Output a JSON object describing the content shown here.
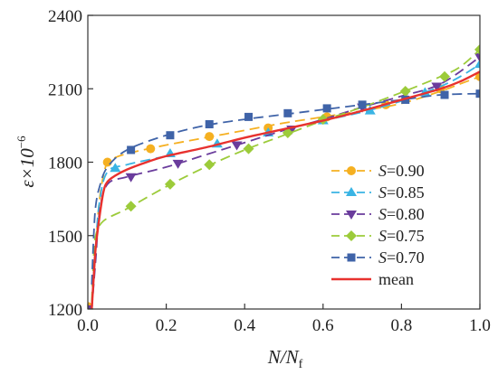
{
  "chart_data": {
    "type": "line",
    "title": "",
    "xlabel": "N/N_f",
    "xlabel_main": "N/N",
    "xlabel_sub": "f",
    "ylabel": "ε×10⁻⁶",
    "ylabel_main": "ε×10",
    "ylabel_exp": "−6",
    "xlim": [
      0.0,
      1.0
    ],
    "ylim": [
      1200,
      2400
    ],
    "xticks": [
      "0.0",
      "0.2",
      "0.4",
      "0.6",
      "0.8",
      "1.0"
    ],
    "yticks": [
      "1200",
      "1500",
      "1800",
      "2100",
      "2400"
    ],
    "grid": false,
    "legend_position": "bottom-right",
    "series": [
      {
        "name": "S=0.90",
        "symbol": "S",
        "value_label": "=0.90",
        "color": "#F5B021",
        "marker": "circle",
        "dash": true,
        "curve": [
          [
            0.01,
            1210
          ],
          [
            0.02,
            1450
          ],
          [
            0.03,
            1650
          ],
          [
            0.045,
            1780
          ],
          [
            0.06,
            1810
          ],
          [
            0.1,
            1835
          ],
          [
            0.2,
            1870
          ],
          [
            0.3,
            1900
          ],
          [
            0.4,
            1930
          ],
          [
            0.5,
            1960
          ],
          [
            0.6,
            1985
          ],
          [
            0.7,
            2010
          ],
          [
            0.8,
            2040
          ],
          [
            0.9,
            2090
          ],
          [
            0.95,
            2120
          ],
          [
            1.0,
            2150
          ]
        ],
        "markers": [
          [
            0.0,
            1210
          ],
          [
            0.05,
            1800
          ],
          [
            0.16,
            1855
          ],
          [
            0.31,
            1905
          ],
          [
            0.46,
            1940
          ],
          [
            0.61,
            1985
          ],
          [
            0.76,
            2035
          ],
          [
            0.9,
            2100
          ],
          [
            1.0,
            2150
          ]
        ]
      },
      {
        "name": "S=0.85",
        "symbol": "S",
        "value_label": "=0.85",
        "color": "#3AB4E4",
        "marker": "triangle",
        "dash": true,
        "curve": [
          [
            0.01,
            1220
          ],
          [
            0.02,
            1460
          ],
          [
            0.03,
            1640
          ],
          [
            0.05,
            1760
          ],
          [
            0.1,
            1790
          ],
          [
            0.2,
            1825
          ],
          [
            0.3,
            1860
          ],
          [
            0.4,
            1900
          ],
          [
            0.5,
            1935
          ],
          [
            0.6,
            1970
          ],
          [
            0.7,
            2005
          ],
          [
            0.8,
            2050
          ],
          [
            0.9,
            2110
          ],
          [
            0.95,
            2150
          ],
          [
            1.0,
            2200
          ]
        ],
        "markers": [
          [
            0.07,
            1775
          ],
          [
            0.21,
            1835
          ],
          [
            0.33,
            1875
          ],
          [
            0.46,
            1920
          ],
          [
            0.6,
            1970
          ],
          [
            0.72,
            2010
          ],
          [
            0.86,
            2085
          ],
          [
            1.0,
            2200
          ]
        ]
      },
      {
        "name": "S=0.80",
        "symbol": "S",
        "value_label": "=0.80",
        "color": "#6A3C9C",
        "marker": "triangle-down",
        "dash": true,
        "curve": [
          [
            0.01,
            1200
          ],
          [
            0.02,
            1400
          ],
          [
            0.03,
            1600
          ],
          [
            0.05,
            1710
          ],
          [
            0.1,
            1740
          ],
          [
            0.2,
            1780
          ],
          [
            0.3,
            1830
          ],
          [
            0.4,
            1880
          ],
          [
            0.5,
            1930
          ],
          [
            0.6,
            1975
          ],
          [
            0.7,
            2025
          ],
          [
            0.8,
            2070
          ],
          [
            0.9,
            2120
          ],
          [
            1.0,
            2230
          ]
        ],
        "markers": [
          [
            0.0,
            1200
          ],
          [
            0.11,
            1740
          ],
          [
            0.23,
            1795
          ],
          [
            0.38,
            1870
          ],
          [
            0.52,
            1935
          ],
          [
            0.7,
            2025
          ],
          [
            0.89,
            2110
          ],
          [
            1.0,
            2230
          ]
        ]
      },
      {
        "name": "S=0.75",
        "symbol": "S",
        "value_label": "=0.75",
        "color": "#9CCB3A",
        "marker": "diamond",
        "dash": true,
        "curve": [
          [
            0.01,
            1230
          ],
          [
            0.015,
            1420
          ],
          [
            0.02,
            1500
          ],
          [
            0.04,
            1560
          ],
          [
            0.1,
            1610
          ],
          [
            0.2,
            1700
          ],
          [
            0.3,
            1780
          ],
          [
            0.4,
            1850
          ],
          [
            0.5,
            1910
          ],
          [
            0.6,
            1970
          ],
          [
            0.7,
            2025
          ],
          [
            0.8,
            2085
          ],
          [
            0.9,
            2150
          ],
          [
            0.95,
            2190
          ],
          [
            1.0,
            2260
          ]
        ],
        "markers": [
          [
            0.11,
            1620
          ],
          [
            0.21,
            1710
          ],
          [
            0.31,
            1790
          ],
          [
            0.41,
            1855
          ],
          [
            0.51,
            1920
          ],
          [
            0.6,
            1975
          ],
          [
            0.81,
            2090
          ],
          [
            0.91,
            2150
          ],
          [
            1.0,
            2260
          ]
        ]
      },
      {
        "name": "S=0.70",
        "symbol": "S",
        "value_label": "=0.70",
        "color": "#3F63A8",
        "marker": "square",
        "dash": true,
        "curve": [
          [
            0.01,
            1300
          ],
          [
            0.015,
            1500
          ],
          [
            0.02,
            1620
          ],
          [
            0.03,
            1700
          ],
          [
            0.05,
            1780
          ],
          [
            0.1,
            1850
          ],
          [
            0.2,
            1910
          ],
          [
            0.3,
            1950
          ],
          [
            0.4,
            1975
          ],
          [
            0.5,
            1995
          ],
          [
            0.6,
            2015
          ],
          [
            0.7,
            2035
          ],
          [
            0.8,
            2055
          ],
          [
            0.9,
            2075
          ],
          [
            1.0,
            2080
          ]
        ],
        "markers": [
          [
            0.11,
            1850
          ],
          [
            0.21,
            1910
          ],
          [
            0.31,
            1955
          ],
          [
            0.41,
            1985
          ],
          [
            0.51,
            2000
          ],
          [
            0.61,
            2020
          ],
          [
            0.7,
            2035
          ],
          [
            0.81,
            2055
          ],
          [
            0.91,
            2075
          ],
          [
            1.0,
            2080
          ]
        ]
      },
      {
        "name": "mean",
        "symbol": "",
        "value_label": "mean",
        "color": "#E8312E",
        "marker": "none",
        "dash": false,
        "curve": [
          [
            0.01,
            1200
          ],
          [
            0.015,
            1330
          ],
          [
            0.02,
            1450
          ],
          [
            0.03,
            1580
          ],
          [
            0.04,
            1680
          ],
          [
            0.05,
            1720
          ],
          [
            0.07,
            1745
          ],
          [
            0.1,
            1770
          ],
          [
            0.15,
            1800
          ],
          [
            0.2,
            1825
          ],
          [
            0.3,
            1860
          ],
          [
            0.4,
            1900
          ],
          [
            0.5,
            1935
          ],
          [
            0.6,
            1970
          ],
          [
            0.7,
            2010
          ],
          [
            0.8,
            2055
          ],
          [
            0.9,
            2100
          ],
          [
            0.95,
            2130
          ],
          [
            1.0,
            2170
          ]
        ],
        "markers": []
      }
    ]
  }
}
